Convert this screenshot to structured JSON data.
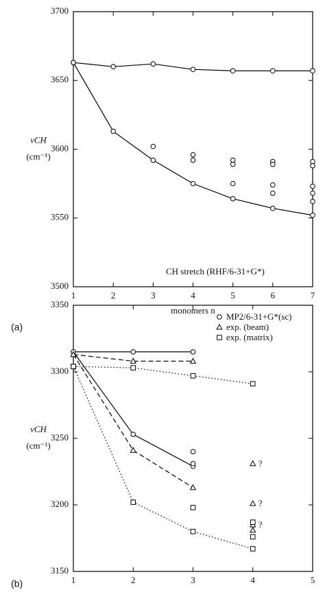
{
  "chart_data": [
    {
      "type": "line",
      "panel_label": "(a)",
      "xlabel": "monomers n",
      "ylabel": "νCH",
      "yunit": "(cm⁻¹)",
      "annotation": "CH stretch (RHF/6-31+G*)",
      "color": "#000",
      "xlim": [
        1,
        7
      ],
      "xticks": [
        1,
        2,
        3,
        4,
        5,
        6,
        7
      ],
      "ylim": [
        3500,
        3700
      ],
      "yticks": [
        3500,
        3550,
        3600,
        3650,
        3700
      ],
      "series": [
        {
          "marker": "circle",
          "line": "solid",
          "curves": [
            {
              "x": [
                1,
                2,
                3,
                4,
                5,
                6,
                7
              ],
              "values": [
                3663,
                3660,
                3662,
                3658,
                3657,
                3657,
                3657
              ]
            },
            {
              "x": [
                1,
                2,
                3,
                4,
                5,
                6,
                7
              ],
              "values": [
                3663,
                3613,
                3592,
                3575,
                3564,
                3557,
                3552
              ]
            }
          ],
          "points": {
            "x": [
              3,
              4,
              4,
              5,
              5,
              5,
              6,
              6,
              6,
              6,
              7,
              7,
              7,
              7,
              7
            ],
            "values": [
              3602,
              3596,
              3592,
              3592,
              3589,
              3575,
              3591,
              3589,
              3574,
              3568,
              3591,
              3588,
              3573,
              3568,
              3562
            ]
          }
        }
      ]
    },
    {
      "type": "line",
      "panel_label": "(b)",
      "xlabel": "monomers n",
      "ylabel": "νCH",
      "yunit": "(cm⁻¹)",
      "color": "#000",
      "xlim": [
        1,
        5
      ],
      "xticks": [
        1,
        2,
        3,
        4,
        5
      ],
      "ylim": [
        3150,
        3350
      ],
      "yticks": [
        3150,
        3200,
        3250,
        3300,
        3350
      ],
      "series": [
        {
          "name": "MP2/6-31+G*(sc)",
          "marker": "circle",
          "line": "solid",
          "curves": [
            {
              "x": [
                1,
                2,
                3
              ],
              "values": [
                3315,
                3315,
                3315
              ]
            },
            {
              "x": [
                1,
                2,
                3
              ],
              "values": [
                3315,
                3253,
                3229
              ]
            }
          ],
          "points": {
            "x": [
              3,
              3
            ],
            "values": [
              3240,
              3231
            ]
          }
        },
        {
          "name": "exp. (beam)",
          "marker": "triangle",
          "line": "dashed",
          "curves": [
            {
              "x": [
                1,
                2,
                3
              ],
              "values": [
                3313,
                3308,
                3308
              ]
            },
            {
              "x": [
                1,
                2,
                3
              ],
              "values": [
                3313,
                3241,
                3213
              ]
            }
          ],
          "points": {
            "x": [
              4,
              4,
              4,
              4
            ],
            "values": [
              3231,
              3201,
              3185,
              3181
            ],
            "value_labels": [
              "?",
              "?",
              "?",
              null
            ]
          }
        },
        {
          "name": "exp. (matrix)",
          "marker": "square",
          "line": "dotted",
          "curves": [
            {
              "x": [
                1,
                2,
                3,
                4
              ],
              "values": [
                3304,
                3303,
                3297,
                3291
              ]
            },
            {
              "x": [
                1,
                2,
                3,
                4
              ],
              "values": [
                3304,
                3202,
                3180,
                3167
              ]
            }
          ],
          "points": {
            "x": [
              3,
              4,
              4
            ],
            "values": [
              3198,
              3187,
              3176
            ]
          }
        }
      ]
    }
  ]
}
